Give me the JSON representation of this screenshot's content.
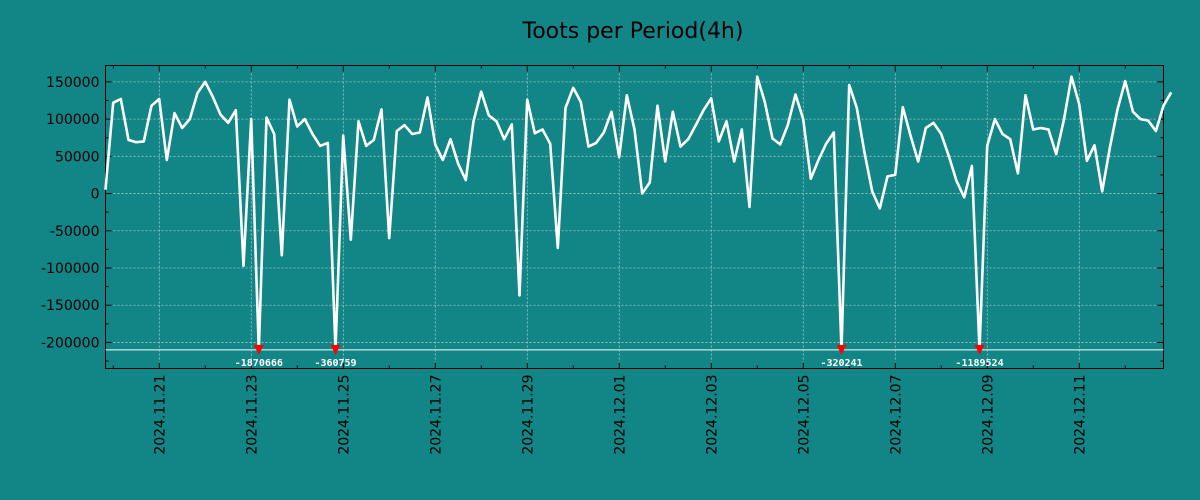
{
  "chart_data": {
    "type": "line",
    "title": "Toots per Period(4h)",
    "xlabel": "",
    "ylabel": "",
    "ylim": [
      -235000,
      172000
    ],
    "yticks": [
      {
        "value": 150000,
        "label": "150000"
      },
      {
        "value": 100000,
        "label": "100000"
      },
      {
        "value": 50000,
        "label": "50000"
      },
      {
        "value": 0,
        "label": "0"
      },
      {
        "value": -50000,
        "label": "-50000"
      },
      {
        "value": -100000,
        "label": "-100000"
      },
      {
        "value": -150000,
        "label": "-150000"
      },
      {
        "value": -200000,
        "label": "-200000"
      }
    ],
    "xticks": [
      {
        "day": 2,
        "label": "2024.11.21"
      },
      {
        "day": 4,
        "label": "2024.11.23"
      },
      {
        "day": 6,
        "label": "2024.11.25"
      },
      {
        "day": 8,
        "label": "2024.11.27"
      },
      {
        "day": 10,
        "label": "2024.11.29"
      },
      {
        "day": 12,
        "label": "2024.12.01"
      },
      {
        "day": 14,
        "label": "2024.12.03"
      },
      {
        "day": 16,
        "label": "2024.12.05"
      },
      {
        "day": 18,
        "label": "2024.12.07"
      },
      {
        "day": 20,
        "label": "2024.12.09"
      },
      {
        "day": 22,
        "label": "2024.12.11"
      }
    ],
    "xlim_days": [
      0.83,
      23.83
    ],
    "interval_days": 0.16667,
    "start_day": 0.83,
    "clip_level": -210000,
    "series": [
      {
        "name": "Toots per Period(4h)",
        "color": "#ffffff",
        "values": [
          5000,
          122000,
          127000,
          72000,
          69000,
          70000,
          118000,
          127000,
          45000,
          108000,
          88000,
          100000,
          135000,
          150000,
          130000,
          106000,
          95000,
          112000,
          -97000,
          100000,
          -210000,
          102000,
          80000,
          -83000,
          126000,
          90000,
          100000,
          80000,
          64000,
          68000,
          -210000,
          78000,
          -62000,
          97000,
          64000,
          72000,
          113000,
          -60000,
          84000,
          92000,
          80000,
          82000,
          129000,
          66000,
          45000,
          73000,
          40000,
          18000,
          97000,
          137000,
          105000,
          97000,
          73000,
          93000,
          -137000,
          126000,
          81000,
          86000,
          67000,
          -73000,
          115000,
          142000,
          123000,
          63000,
          68000,
          82000,
          110000,
          49000,
          132000,
          86000,
          0,
          15000,
          118000,
          43000,
          110000,
          63000,
          73000,
          92000,
          112000,
          128000,
          70000,
          97000,
          43000,
          86000,
          -18000,
          157000,
          123000,
          74000,
          66000,
          92000,
          133000,
          100000,
          20000,
          45000,
          67000,
          82000,
          -210000,
          146000,
          115000,
          55000,
          3000,
          -20000,
          23000,
          25000,
          116000,
          78000,
          43000,
          88000,
          95000,
          80000,
          50000,
          17000,
          -5000,
          37000,
          -210000,
          64000,
          100000,
          80000,
          73000,
          27000,
          132000,
          86000,
          88000,
          86000,
          53000,
          99000,
          157000,
          120000,
          44000,
          65000,
          3000,
          62000,
          113000,
          151000,
          110000,
          100000,
          98000,
          84000,
          118000,
          136000
        ]
      }
    ],
    "outliers": [
      {
        "index": 20,
        "value": -1870666,
        "label": "-1870666"
      },
      {
        "index": 30,
        "value": -360759,
        "label": "-360759"
      },
      {
        "index": 96,
        "value": -320241,
        "label": "-320241"
      },
      {
        "index": 114,
        "value": -1189524,
        "label": "-1189524"
      }
    ]
  }
}
